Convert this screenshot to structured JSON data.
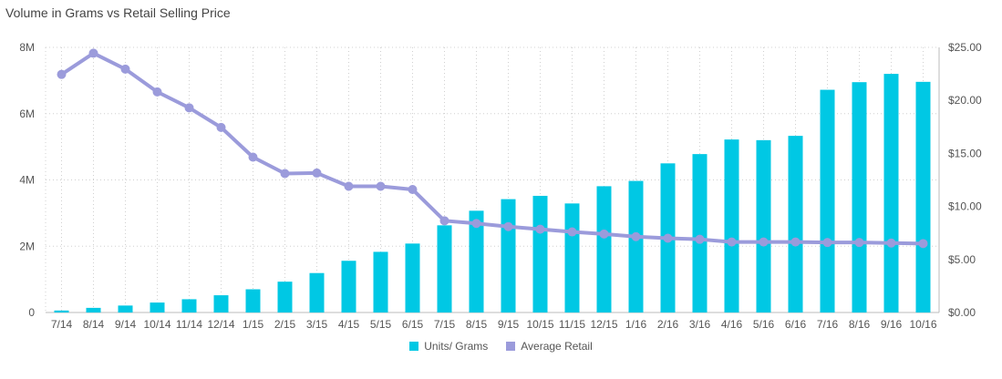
{
  "title": "Volume in Grams vs Retail Selling Price",
  "colors": {
    "bar": "#00C8E4",
    "line": "#9B9BDB",
    "grid": "#d0d0d0"
  },
  "chart_data": {
    "type": "bar+line",
    "title": "Volume in Grams vs Retail Selling Price",
    "categories": [
      "7/14",
      "8/14",
      "9/14",
      "10/14",
      "11/14",
      "12/14",
      "1/15",
      "2/15",
      "3/15",
      "4/15",
      "5/15",
      "6/15",
      "7/15",
      "8/15",
      "9/15",
      "10/15",
      "11/15",
      "12/15",
      "1/16",
      "2/16",
      "3/16",
      "4/16",
      "5/16",
      "6/16",
      "7/16",
      "8/16",
      "9/16",
      "10/16"
    ],
    "series": [
      {
        "name": "Units/ Grams",
        "type": "bar",
        "axis": "left",
        "values": [
          60000,
          140000,
          210000,
          300000,
          400000,
          520000,
          700000,
          930000,
          1190000,
          1560000,
          1830000,
          2080000,
          2630000,
          3070000,
          3420000,
          3520000,
          3290000,
          3810000,
          3970000,
          4500000,
          4780000,
          5220000,
          5200000,
          5330000,
          6720000,
          6950000,
          7200000,
          6960000
        ]
      },
      {
        "name": "Average Retail",
        "type": "line",
        "axis": "right",
        "values": [
          22.45,
          24.45,
          22.95,
          20.8,
          19.3,
          17.45,
          14.65,
          13.1,
          13.15,
          11.9,
          11.9,
          11.6,
          8.65,
          8.4,
          8.1,
          7.85,
          7.6,
          7.4,
          7.15,
          7.0,
          6.9,
          6.65,
          6.65,
          6.65,
          6.6,
          6.6,
          6.55,
          6.5
        ]
      }
    ],
    "ylim_left": [
      0,
      8000000
    ],
    "ylim_right": [
      0,
      25
    ],
    "left_ticks": [
      "0",
      "2M",
      "4M",
      "6M",
      "8M"
    ],
    "right_ticks": [
      "$0.00",
      "$5.00",
      "$10.00",
      "$15.00",
      "$20.00",
      "$25.00"
    ],
    "grid": true,
    "legend_position": "bottom"
  }
}
